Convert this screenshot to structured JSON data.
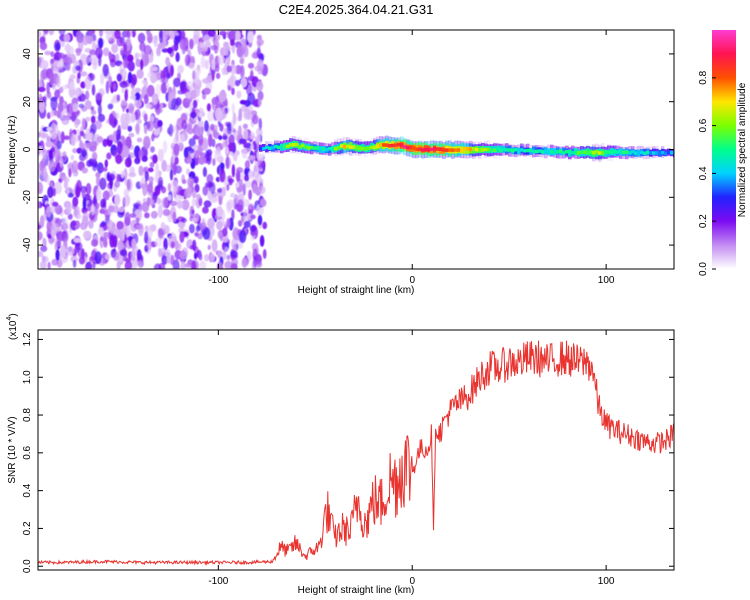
{
  "chart_data": [
    {
      "type": "heatmap",
      "title": "C2E4.2025.364.04.21.G31",
      "xlabel": "Height of straight line (km)",
      "ylabel": "Frequency (Hz)",
      "xlim": [
        -193,
        135
      ],
      "ylim": [
        -50,
        50
      ],
      "x_ticks": [
        -100,
        0,
        100
      ],
      "x_tick_labels": [
        "-100",
        "0",
        "100"
      ],
      "y_ticks": [
        -40,
        -20,
        0,
        20,
        40
      ],
      "y_tick_labels": [
        "-40",
        "-20",
        "0",
        "20",
        "40"
      ],
      "noise_region_km": [
        -193,
        -76
      ],
      "signal_start_km": -79,
      "ridge": {
        "x": [
          -79,
          -70,
          -63,
          -55,
          -45,
          -35,
          -25,
          -15,
          -5,
          0,
          10,
          25,
          40,
          60,
          80,
          95,
          100,
          115,
          135
        ],
        "freq": [
          0.5,
          1.0,
          2.0,
          1.0,
          0.0,
          1.5,
          0.5,
          2.0,
          1.5,
          0.3,
          0.0,
          0.0,
          0.0,
          -0.5,
          -1.2,
          -1.4,
          -1.2,
          -1.3,
          -1.5
        ],
        "amplitude": [
          0.35,
          0.45,
          0.65,
          0.55,
          0.45,
          0.7,
          0.55,
          0.8,
          0.9,
          0.85,
          0.9,
          0.75,
          0.55,
          0.45,
          0.5,
          0.65,
          0.55,
          0.45,
          0.35
        ]
      },
      "colorbar": {
        "label": "Normalized spectral amplitude",
        "range": [
          0.0,
          1.0
        ],
        "ticks": [
          0.0,
          0.2,
          0.4,
          0.6,
          0.8
        ],
        "tick_labels": [
          "0.0",
          "0.2",
          "0.4",
          "0.6",
          "0.8"
        ],
        "colors": [
          "#ffffff",
          "#c38cf2",
          "#7c0bf2",
          "#2222ff",
          "#00d2ff",
          "#00ff8c",
          "#7cff00",
          "#ffe600",
          "#ff5000",
          "#ff1450",
          "#ff3cd2"
        ]
      }
    },
    {
      "type": "line",
      "xlabel": "Height of straight line (km)",
      "ylabel": "SNR (10 * V/V)",
      "y_scale_label": "(x10",
      "y_scale_exponent": "4",
      "xlim": [
        -193,
        135
      ],
      "ylim": [
        -0.02,
        1.25
      ],
      "x_ticks": [
        -100,
        0,
        100
      ],
      "x_tick_labels": [
        "-100",
        "0",
        "100"
      ],
      "y_ticks": [
        0.0,
        0.2,
        0.4,
        0.6,
        0.8,
        1.0,
        1.2
      ],
      "y_tick_labels": [
        "0.0",
        "0.2",
        "0.4",
        "0.6",
        "0.8",
        "1.0",
        "1.2"
      ],
      "series": [
        {
          "name": "SNR",
          "color": "#e8332f",
          "x": [
            -193,
            -180,
            -160,
            -140,
            -120,
            -100,
            -85,
            -72,
            -68,
            -64,
            -60,
            -55,
            -52,
            -48,
            -44,
            -40,
            -36,
            -32,
            -28,
            -24,
            -20,
            -16,
            -12,
            -8,
            -4,
            0,
            4,
            8,
            10,
            11,
            12,
            14,
            18,
            22,
            26,
            30,
            35,
            40,
            45,
            50,
            55,
            60,
            65,
            70,
            75,
            80,
            85,
            90,
            93,
            96,
            100,
            105,
            110,
            115,
            120,
            125,
            130,
            135
          ],
          "values": [
            0.02,
            0.02,
            0.025,
            0.02,
            0.02,
            0.02,
            0.02,
            0.025,
            0.1,
            0.08,
            0.12,
            0.05,
            0.08,
            0.1,
            0.3,
            0.15,
            0.2,
            0.18,
            0.35,
            0.22,
            0.35,
            0.33,
            0.45,
            0.45,
            0.55,
            0.5,
            0.62,
            0.62,
            0.7,
            0.16,
            0.75,
            0.7,
            0.8,
            0.85,
            0.88,
            0.92,
            1.0,
            1.05,
            1.05,
            1.08,
            1.08,
            1.1,
            1.1,
            1.08,
            1.1,
            1.1,
            1.08,
            1.08,
            1.05,
            0.85,
            0.75,
            0.72,
            0.7,
            0.68,
            0.66,
            0.65,
            0.66,
            0.7
          ]
        }
      ]
    }
  ]
}
